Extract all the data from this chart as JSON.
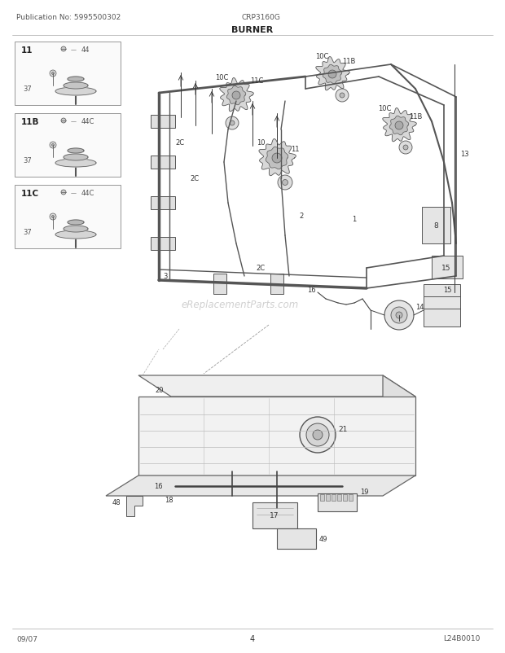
{
  "title": "BURNER",
  "pub_no": "Publication No: 5995500302",
  "model": "CRP3160G",
  "footer_left": "09/07",
  "footer_center": "4",
  "footer_right": "L24B0010",
  "bg_color": "#ffffff",
  "line_color": "#444444",
  "light_line": "#888888",
  "text_color": "#333333",
  "box_fill": "#f8f8f8",
  "watermark_color": "#cccccc"
}
